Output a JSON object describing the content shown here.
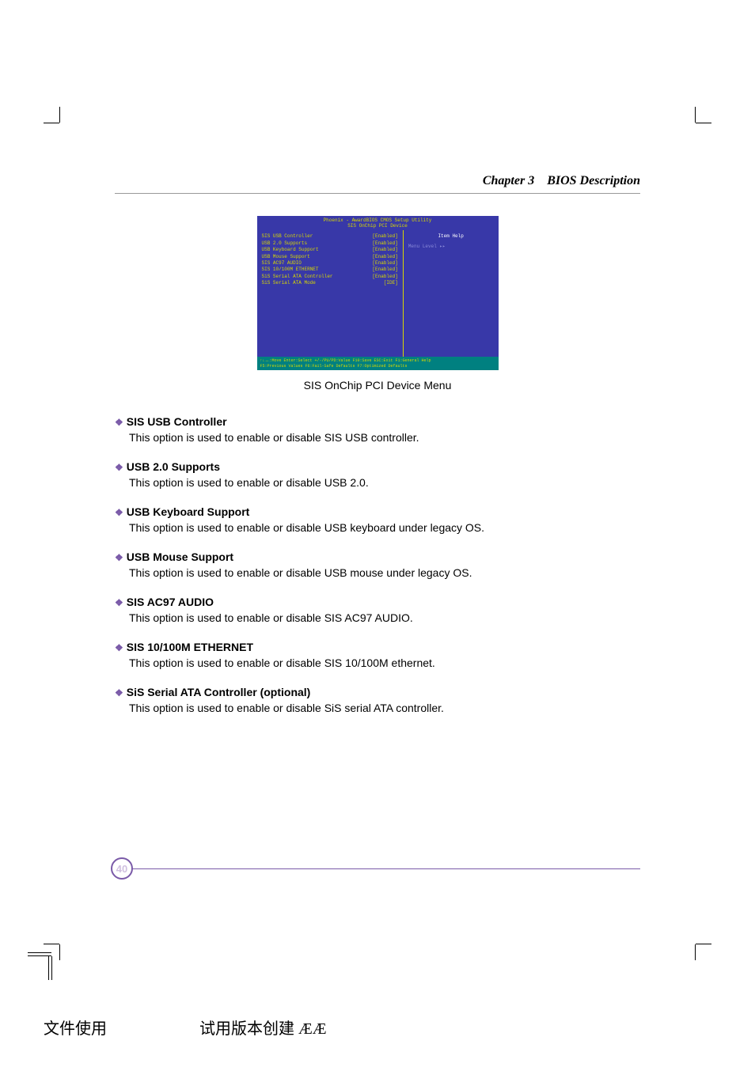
{
  "header": {
    "chapter": "Chapter 3",
    "title": "BIOS Description"
  },
  "bios": {
    "titlebar_line1": "Phoenix - AwardBIOS CMOS Setup Utility",
    "titlebar_line2": "SIS OnChip PCI Device",
    "options": [
      {
        "label": "SIS USB Controller",
        "value": "[Enabled]"
      },
      {
        "label": "USB 2.0 Supports",
        "value": "[Enabled]"
      },
      {
        "label": "USB Keyboard Support",
        "value": "[Enabled]"
      },
      {
        "label": "USB Mouse Support",
        "value": "[Enabled]"
      },
      {
        "label": "SIS AC97 AUDIO",
        "value": "[Enabled]"
      },
      {
        "label": "SIS 10/100M ETHERNET",
        "value": "[Enabled]"
      },
      {
        "label": "SiS Serial ATA Controller",
        "value": "[Enabled]"
      },
      {
        "label": "SiS Serial ATA Mode",
        "value": "[IDE]"
      }
    ],
    "item_help": "Item Help",
    "menu_level": "Menu Level  ▸▸",
    "footer_line1": "↑↓→←:Move  Enter:Select  +/-/PU/PD:Value  F10:Save  ESC:Exit  F1:General Help",
    "footer_line2": "F5:Previous Values  F6:Fail-Safe Defaults  F7:Optimized Defaults",
    "caption": "SIS OnChip PCI Device Menu"
  },
  "sections": [
    {
      "title": "SIS USB Controller",
      "desc": "This option is used to enable or disable SIS USB controller."
    },
    {
      "title": "USB 2.0 Supports",
      "desc": "This option is used to enable or disable USB 2.0."
    },
    {
      "title": "USB Keyboard Support",
      "desc": "This option is used to enable or disable USB keyboard under legacy OS."
    },
    {
      "title": "USB Mouse Support",
      "desc": "This option is used to enable or disable USB mouse under legacy OS."
    },
    {
      "title": "SIS AC97 AUDIO",
      "desc": "This option is used to enable or disable SIS AC97 AUDIO."
    },
    {
      "title": "SIS 10/100M ETHERNET",
      "desc": "This option is used to enable or disable SIS 10/100M ethernet."
    },
    {
      "title": "SiS Serial ATA Controller (optional)",
      "desc": "This option is used to enable or disable SiS serial ATA controller."
    }
  ],
  "page_number": "40",
  "bottom_text": {
    "left": "文件使用",
    "right": "试用版本创建  ÆÆ"
  },
  "colors": {
    "bios_bg": "#3838a8",
    "bios_yellow": "#d8d800",
    "bios_teal": "#008080",
    "bullet_purple": "#7a5aa8",
    "footer_purple": "#7a5aa8"
  }
}
